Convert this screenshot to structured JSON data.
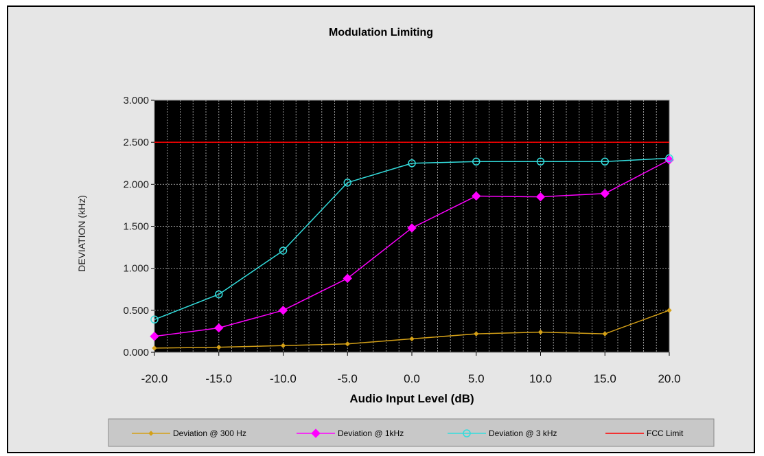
{
  "chart_data": {
    "type": "line",
    "title": "Modulation Limiting",
    "xlabel": "Audio Input Level (dB)",
    "ylabel": "DEVIATION (kHz)",
    "x": [
      -20,
      -15,
      -10,
      -5,
      0,
      5,
      10,
      15,
      20
    ],
    "x_tick_labels": [
      "-20.0",
      "-15.0",
      "-10.0",
      "-5.0",
      "0.0",
      "5.0",
      "10.0",
      "15.0",
      "20.0"
    ],
    "xlim": [
      -20,
      20
    ],
    "ylim": [
      0,
      3
    ],
    "y_ticks": [
      0,
      0.5,
      1.0,
      1.5,
      2.0,
      2.5,
      3.0
    ],
    "y_tick_labels": [
      "0.000",
      "0.500",
      "1.000",
      "1.500",
      "2.000",
      "2.500",
      "3.000"
    ],
    "plot_background": "#000000",
    "grid": true,
    "legend_position": "bottom",
    "series": [
      {
        "name": "Deviation @ 300 Hz",
        "color": "#d4a017",
        "marker": "diamond-small",
        "values": [
          0.05,
          0.06,
          0.08,
          0.1,
          0.16,
          0.22,
          0.24,
          0.22,
          0.5
        ]
      },
      {
        "name": "Deviation @ 1kHz",
        "color": "#ff00ff",
        "marker": "diamond",
        "values": [
          0.19,
          0.29,
          0.5,
          0.88,
          1.48,
          1.86,
          1.85,
          1.89,
          2.29
        ]
      },
      {
        "name": "Deviation @ 3 kHz",
        "color": "#33dddd",
        "marker": "circle",
        "values": [
          0.39,
          0.69,
          1.21,
          2.02,
          2.25,
          2.27,
          2.27,
          2.27,
          2.31
        ]
      },
      {
        "name": "FCC Limit",
        "color": "#ff0000",
        "marker": "none",
        "values": [
          2.5,
          2.5,
          2.5,
          2.5,
          2.5,
          2.5,
          2.5,
          2.5,
          2.5
        ]
      }
    ]
  }
}
